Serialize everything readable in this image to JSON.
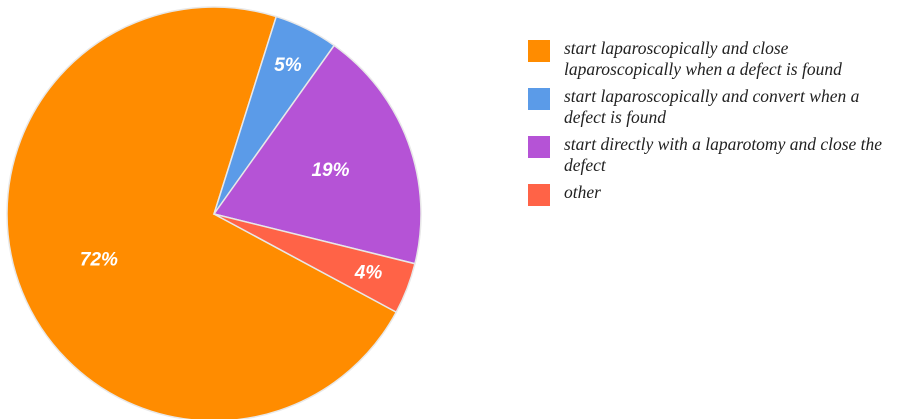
{
  "chart_data": {
    "type": "pie",
    "categories": [
      "start laparoscopically and close laparoscopically when a defect is found",
      "start laparoscopically and convert when a defect is found",
      "start directly with a laparotomy and close the defect",
      "other"
    ],
    "values": [
      72,
      5,
      19,
      4
    ],
    "value_labels": [
      "72%",
      "5%",
      "19%",
      "4%"
    ],
    "colors": [
      "#ff8c00",
      "#5b9be8",
      "#b553d6",
      "#ff6347"
    ]
  }
}
